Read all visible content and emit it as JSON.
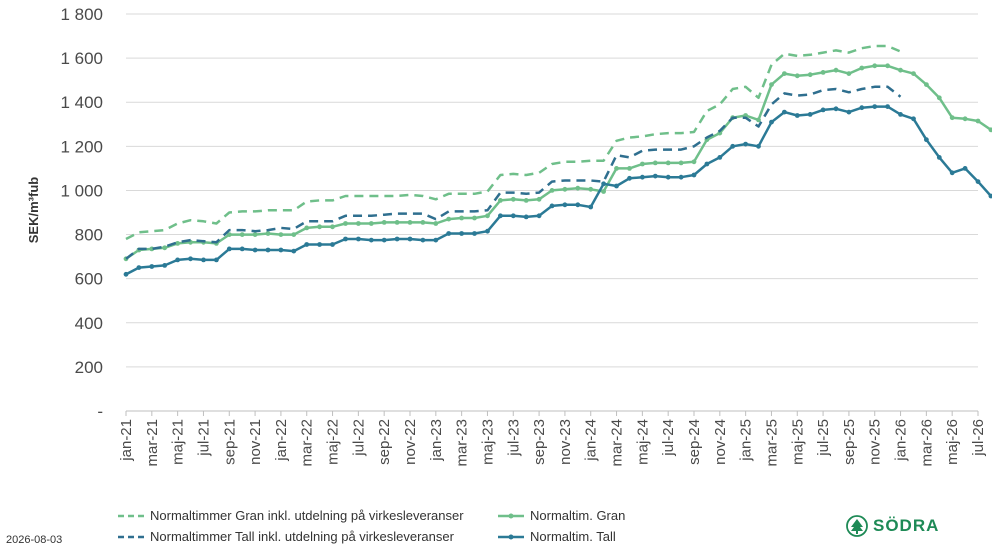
{
  "chart_data": {
    "type": "line",
    "ylabel": "SEK/m³fub",
    "ylim": [
      0,
      1800
    ],
    "yticks": [
      0,
      200,
      400,
      600,
      800,
      1000,
      1200,
      1400,
      1600,
      1800
    ],
    "ytick_labels": [
      "-",
      "200",
      "400",
      "600",
      "800",
      "1 000",
      "1 200",
      "1 400",
      "1 600",
      "1 800"
    ],
    "x_start": "2021-01",
    "xtick_labels": [
      "jan-21",
      "mar-21",
      "maj-21",
      "jul-21",
      "sep-21",
      "nov-21",
      "jan-22",
      "mar-22",
      "maj-22",
      "jul-22",
      "sep-22",
      "nov-22",
      "jan-23",
      "mar-23",
      "maj-23",
      "jul-23",
      "sep-23",
      "nov-23",
      "jan-24",
      "mar-24",
      "maj-24",
      "jul-24",
      "sep-24",
      "nov-24",
      "jan-25",
      "mar-25",
      "maj-25",
      "jul-25",
      "sep-25",
      "nov-25",
      "jan-26",
      "mar-26",
      "maj-26",
      "jul-26"
    ],
    "grid": "horizontal",
    "legend_position": "bottom",
    "series": [
      {
        "name": "Normaltimmer Gran inkl. utdelning på virkesleveranser",
        "color": "#6fbf8a",
        "style": "dashed",
        "values": [
          780,
          810,
          815,
          820,
          850,
          865,
          860,
          850,
          900,
          905,
          905,
          910,
          910,
          910,
          950,
          955,
          955,
          975,
          975,
          975,
          975,
          975,
          980,
          975,
          960,
          985,
          985,
          985,
          995,
          1070,
          1075,
          1070,
          1080,
          1120,
          1130,
          1130,
          1135,
          1135,
          1225,
          1240,
          1245,
          1255,
          1260,
          1260,
          1265,
          1360,
          1390,
          1460,
          1470,
          1420,
          1570,
          1620,
          1610,
          1615,
          1625,
          1635,
          1625,
          1645,
          1655,
          1655,
          1630
        ]
      },
      {
        "name": "Normaltim. Gran",
        "color": "#6fbf8a",
        "style": "solid",
        "values": [
          690,
          730,
          735,
          740,
          760,
          765,
          765,
          760,
          800,
          800,
          800,
          805,
          800,
          800,
          830,
          835,
          835,
          850,
          850,
          850,
          855,
          855,
          855,
          855,
          850,
          870,
          875,
          875,
          885,
          955,
          960,
          955,
          960,
          1000,
          1005,
          1010,
          1005,
          995,
          1100,
          1100,
          1120,
          1125,
          1125,
          1125,
          1130,
          1230,
          1260,
          1330,
          1340,
          1320,
          1480,
          1530,
          1520,
          1525,
          1535,
          1545,
          1530,
          1555,
          1565,
          1565,
          1545,
          1530,
          1480,
          1420,
          1330,
          1325,
          1315,
          1275
        ]
      },
      {
        "name": "Normaltimmer Tall inkl. utdelning på virkesleveranser",
        "color": "#2f6f8f",
        "style": "dashed",
        "values": [
          690,
          735,
          735,
          745,
          765,
          775,
          770,
          765,
          820,
          820,
          815,
          820,
          830,
          825,
          860,
          860,
          860,
          885,
          885,
          885,
          890,
          895,
          895,
          895,
          870,
          905,
          905,
          905,
          910,
          990,
          990,
          985,
          990,
          1040,
          1045,
          1045,
          1045,
          1040,
          1160,
          1150,
          1180,
          1185,
          1185,
          1185,
          1200,
          1240,
          1270,
          1330,
          1330,
          1290,
          1390,
          1440,
          1430,
          1435,
          1455,
          1460,
          1445,
          1460,
          1470,
          1470,
          1425
        ]
      },
      {
        "name": "Normaltim. Tall",
        "color": "#2b7a96",
        "style": "solid",
        "values": [
          620,
          650,
          655,
          660,
          685,
          690,
          685,
          685,
          735,
          735,
          730,
          730,
          730,
          725,
          755,
          755,
          755,
          780,
          780,
          775,
          775,
          780,
          780,
          775,
          775,
          805,
          805,
          805,
          815,
          885,
          885,
          880,
          885,
          930,
          935,
          935,
          925,
          1030,
          1020,
          1055,
          1060,
          1065,
          1060,
          1060,
          1070,
          1120,
          1150,
          1200,
          1210,
          1200,
          1310,
          1355,
          1340,
          1345,
          1365,
          1370,
          1355,
          1375,
          1380,
          1380,
          1345,
          1325,
          1230,
          1150,
          1080,
          1100,
          1040,
          975
        ]
      }
    ]
  },
  "legend": {
    "items": [
      {
        "label": "Normaltimmer Gran inkl. utdelning på virkesleveranser",
        "color": "#6fbf8a",
        "style": "dashed"
      },
      {
        "label": "Normaltim. Gran",
        "color": "#6fbf8a",
        "style": "solid"
      },
      {
        "label": "Normaltimmer Tall inkl. utdelning på virkesleveranser",
        "color": "#2f6f8f",
        "style": "dashed"
      },
      {
        "label": "Normaltim. Tall",
        "color": "#2b7a96",
        "style": "solid"
      }
    ]
  },
  "footer": {
    "date": "2026-08-03"
  },
  "logo": {
    "text": "SÖDRA",
    "color": "#1e8a56"
  }
}
